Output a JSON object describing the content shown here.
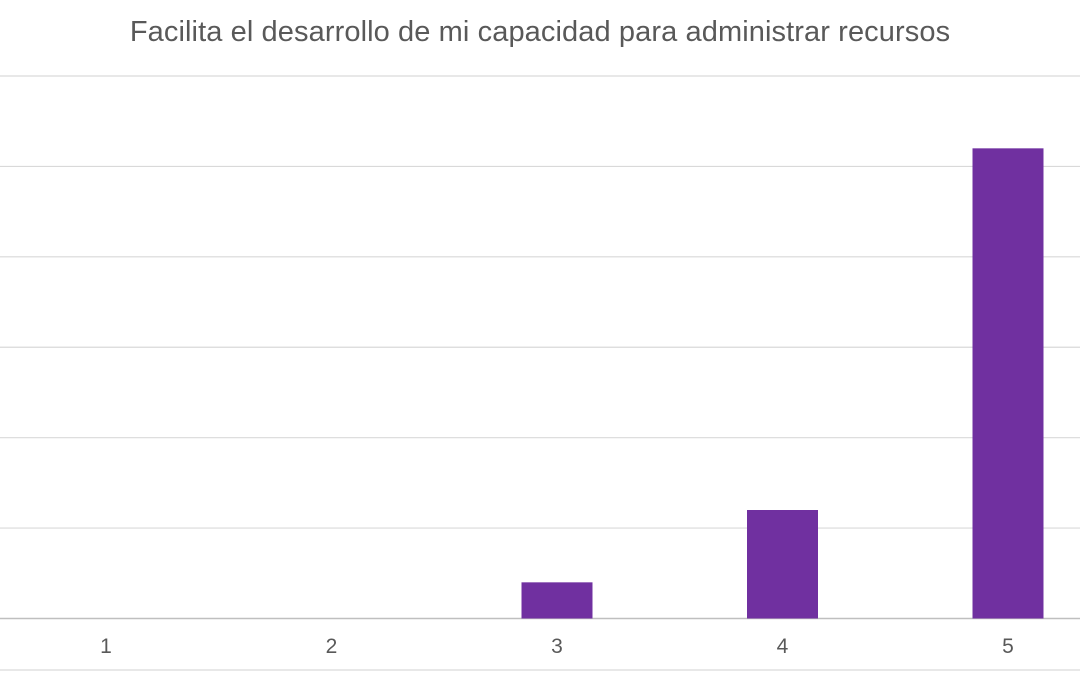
{
  "chart_data": {
    "type": "bar",
    "title": "Facilita el desarrollo de mi capacidad para administrar recursos",
    "xlabel": "",
    "ylabel": "",
    "categories": [
      "1",
      "2",
      "3",
      "4",
      "5"
    ],
    "values": [
      0,
      0,
      2,
      6,
      26
    ],
    "ylim": [
      0,
      30
    ],
    "grid": true,
    "legend": "none",
    "bar_color": "#7030a0",
    "grid_color": "#d9d9d9"
  }
}
